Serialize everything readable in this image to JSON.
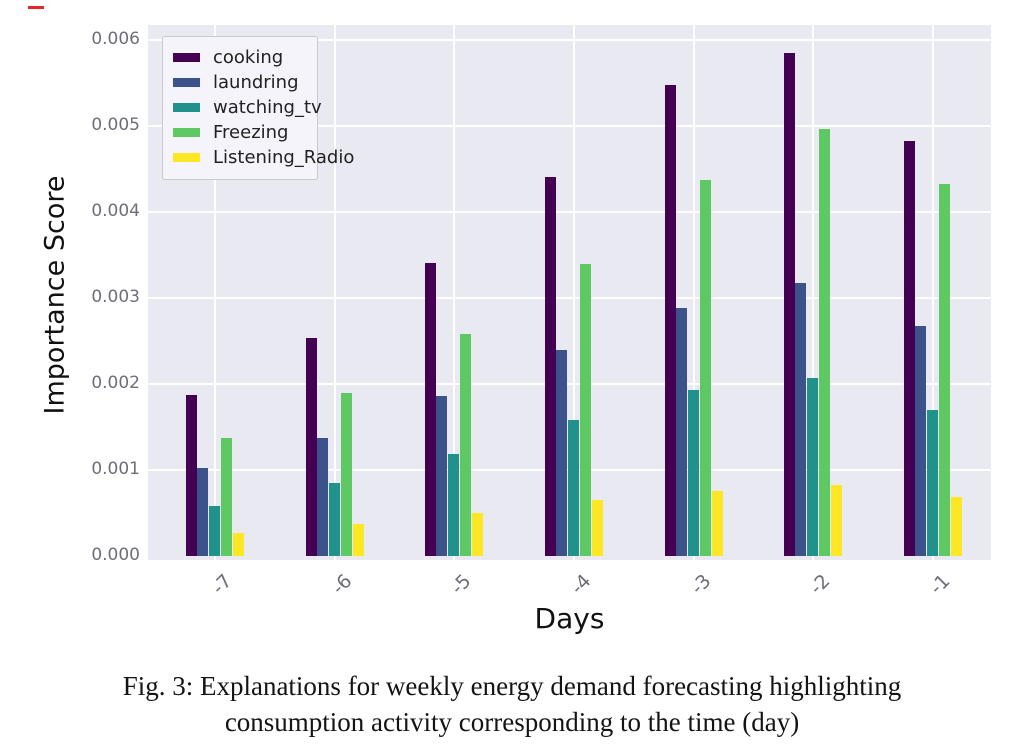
{
  "figure": {
    "caption_line1": "Fig. 3: Explanations for weekly energy demand forecasting highlighting",
    "caption_line2": "consumption activity corresponding to the time (day)",
    "red_mark_color": "#e8262a"
  },
  "chart_data": {
    "type": "bar",
    "title": "",
    "xlabel": "Days",
    "ylabel": "Importance Score",
    "categories": [
      "-7",
      "-6",
      "-5",
      "-4",
      "-3",
      "-2",
      "-1"
    ],
    "series": [
      {
        "name": "cooking",
        "color": "#440154",
        "values": [
          0.00187,
          0.00253,
          0.00341,
          0.00441,
          0.00548,
          0.00585,
          0.00482
        ]
      },
      {
        "name": "laundring",
        "color": "#3b528b",
        "values": [
          0.00102,
          0.00137,
          0.00186,
          0.00239,
          0.00288,
          0.00318,
          0.00267
        ]
      },
      {
        "name": "watching_tv",
        "color": "#21918c",
        "values": [
          0.00058,
          0.00085,
          0.00119,
          0.00158,
          0.00193,
          0.00207,
          0.0017
        ]
      },
      {
        "name": "Freezing",
        "color": "#5ec962",
        "values": [
          0.00137,
          0.0019,
          0.00258,
          0.0034,
          0.00437,
          0.00497,
          0.00433
        ]
      },
      {
        "name": "Listening_Radio",
        "color": "#fde725",
        "values": [
          0.00027,
          0.00037,
          0.0005,
          0.00065,
          0.00075,
          0.00083,
          0.00069
        ]
      }
    ],
    "ylim": [
      0,
      0.006
    ],
    "yticks": [
      "0.000",
      "0.001",
      "0.002",
      "0.003",
      "0.004",
      "0.005",
      "0.006"
    ],
    "grid": true,
    "grid_color": "#ffffff",
    "plot_background": "#e9e9f1",
    "legend_position": "upper left"
  }
}
